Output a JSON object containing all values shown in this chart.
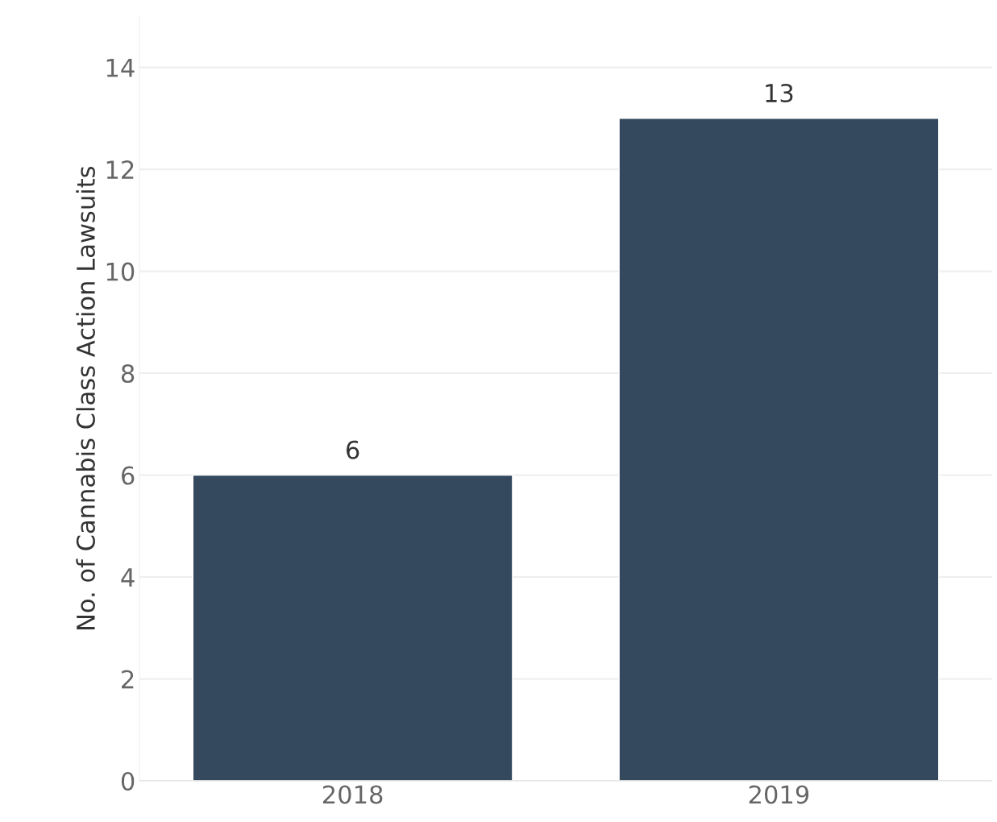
{
  "chart_data": {
    "type": "bar",
    "ylabel": "No. of Cannabis Class Action Lawsuits",
    "categories": [
      "2018",
      "2019"
    ],
    "values": [
      6,
      13
    ],
    "color": "#34495e",
    "ylim": [
      0,
      15
    ],
    "yticks": [
      0,
      2,
      4,
      6,
      8,
      10,
      12,
      14
    ],
    "grid": "y",
    "data_labels": true
  }
}
